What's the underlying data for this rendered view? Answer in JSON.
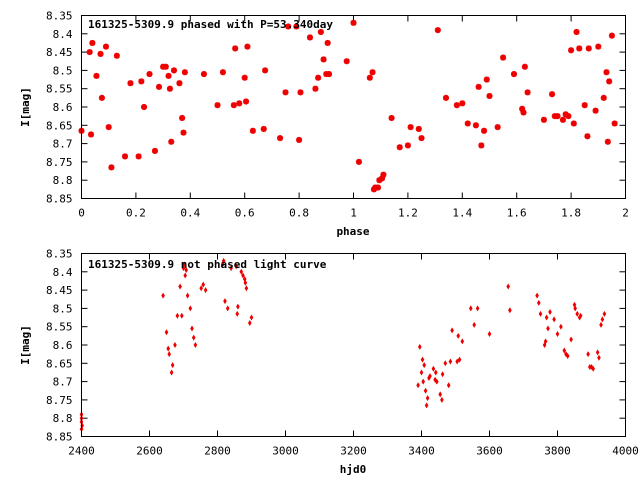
{
  "colors": {
    "series": "#ee0000",
    "axis": "#000000",
    "background": "#ffffff"
  },
  "chart_data": [
    {
      "type": "scatter",
      "title": "161325-5309.9 phased with P=53.340day",
      "xlabel": "phase",
      "ylabel": "I[mag]",
      "xlim": [
        0,
        2
      ],
      "ylim": [
        8.85,
        8.35
      ],
      "y_inverted": true,
      "grid": false,
      "marker": "star",
      "x_ticks": [
        "0",
        "0.2",
        "0.4",
        "0.6",
        "0.8",
        "1",
        "1.2",
        "1.4",
        "1.6",
        "1.8",
        "2"
      ],
      "x_tick_values": [
        0,
        0.2,
        0.4,
        0.6,
        0.8,
        1.0,
        1.2,
        1.4,
        1.6,
        1.8,
        2.0
      ],
      "y_ticks": [
        "8.35",
        "8.4",
        "8.45",
        "8.5",
        "8.55",
        "8.6",
        "8.65",
        "8.7",
        "8.75",
        "8.8",
        "8.85"
      ],
      "y_tick_values": [
        8.35,
        8.4,
        8.45,
        8.5,
        8.55,
        8.6,
        8.65,
        8.7,
        8.75,
        8.8,
        8.85
      ],
      "series": [
        {
          "points": [
            [
              0.0,
              8.665
            ],
            [
              0.03,
              8.45
            ],
            [
              0.035,
              8.675
            ],
            [
              0.04,
              8.425
            ],
            [
              0.055,
              8.515
            ],
            [
              0.07,
              8.455
            ],
            [
              0.075,
              8.575
            ],
            [
              0.09,
              8.435
            ],
            [
              0.1,
              8.655
            ],
            [
              0.11,
              8.765
            ],
            [
              0.13,
              8.46
            ],
            [
              0.16,
              8.735
            ],
            [
              0.18,
              8.535
            ],
            [
              0.21,
              8.735
            ],
            [
              0.22,
              8.53
            ],
            [
              0.23,
              8.6
            ],
            [
              0.25,
              8.51
            ],
            [
              0.27,
              8.72
            ],
            [
              0.285,
              8.545
            ],
            [
              0.3,
              8.49
            ],
            [
              0.31,
              8.49
            ],
            [
              0.32,
              8.515
            ],
            [
              0.325,
              8.55
            ],
            [
              0.33,
              8.695
            ],
            [
              0.34,
              8.5
            ],
            [
              0.36,
              8.535
            ],
            [
              0.37,
              8.63
            ],
            [
              0.375,
              8.67
            ],
            [
              0.38,
              8.505
            ],
            [
              0.45,
              8.51
            ],
            [
              0.5,
              8.595
            ],
            [
              0.52,
              8.505
            ],
            [
              0.56,
              8.595
            ],
            [
              0.565,
              8.44
            ],
            [
              0.58,
              8.59
            ],
            [
              0.6,
              8.52
            ],
            [
              0.605,
              8.585
            ],
            [
              0.61,
              8.435
            ],
            [
              0.63,
              8.665
            ],
            [
              0.67,
              8.66
            ],
            [
              0.675,
              8.5
            ],
            [
              0.73,
              8.685
            ],
            [
              0.75,
              8.56
            ],
            [
              0.76,
              8.38
            ],
            [
              0.79,
              8.38
            ],
            [
              0.8,
              8.69
            ],
            [
              0.805,
              8.56
            ],
            [
              0.84,
              8.41
            ],
            [
              0.86,
              8.55
            ],
            [
              0.87,
              8.52
            ],
            [
              0.88,
              8.395
            ],
            [
              0.89,
              8.47
            ],
            [
              0.9,
              8.51
            ],
            [
              0.905,
              8.425
            ],
            [
              0.91,
              8.51
            ],
            [
              0.975,
              8.475
            ],
            [
              1.0,
              8.37
            ],
            [
              1.02,
              8.75
            ],
            [
              1.06,
              8.52
            ],
            [
              1.07,
              8.505
            ],
            [
              1.075,
              8.825
            ],
            [
              1.08,
              8.82
            ],
            [
              1.09,
              8.82
            ],
            [
              1.095,
              8.8
            ],
            [
              1.105,
              8.795
            ],
            [
              1.11,
              8.785
            ],
            [
              1.14,
              8.63
            ],
            [
              1.17,
              8.71
            ],
            [
              1.2,
              8.705
            ],
            [
              1.21,
              8.655
            ],
            [
              1.24,
              8.66
            ],
            [
              1.25,
              8.685
            ],
            [
              1.31,
              8.39
            ],
            [
              1.34,
              8.575
            ],
            [
              1.38,
              8.595
            ],
            [
              1.4,
              8.59
            ],
            [
              1.42,
              8.645
            ],
            [
              1.45,
              8.65
            ],
            [
              1.46,
              8.545
            ],
            [
              1.47,
              8.705
            ],
            [
              1.48,
              8.665
            ],
            [
              1.49,
              8.525
            ],
            [
              1.5,
              8.57
            ],
            [
              1.53,
              8.655
            ],
            [
              1.55,
              8.465
            ],
            [
              1.59,
              8.51
            ],
            [
              1.62,
              8.605
            ],
            [
              1.625,
              8.615
            ],
            [
              1.63,
              8.49
            ],
            [
              1.64,
              8.56
            ],
            [
              1.7,
              8.635
            ],
            [
              1.73,
              8.565
            ],
            [
              1.74,
              8.625
            ],
            [
              1.75,
              8.625
            ],
            [
              1.77,
              8.635
            ],
            [
              1.78,
              8.62
            ],
            [
              1.79,
              8.625
            ],
            [
              1.8,
              8.445
            ],
            [
              1.81,
              8.645
            ],
            [
              1.82,
              8.395
            ],
            [
              1.83,
              8.44
            ],
            [
              1.85,
              8.595
            ],
            [
              1.86,
              8.68
            ],
            [
              1.865,
              8.44
            ],
            [
              1.89,
              8.61
            ],
            [
              1.9,
              8.435
            ],
            [
              1.92,
              8.575
            ],
            [
              1.93,
              8.505
            ],
            [
              1.935,
              8.695
            ],
            [
              1.94,
              8.53
            ],
            [
              1.95,
              8.405
            ],
            [
              1.96,
              8.645
            ]
          ]
        }
      ]
    },
    {
      "type": "scatter",
      "title": "161325-5309.9 not phased light curve",
      "xlabel": "hjd0",
      "ylabel": "I[mag]",
      "xlim": [
        2400,
        4000
      ],
      "ylim": [
        8.85,
        8.35
      ],
      "y_inverted": true,
      "grid": false,
      "marker": "diamond",
      "x_ticks": [
        "2400",
        "2600",
        "2800",
        "3000",
        "3200",
        "3400",
        "3600",
        "3800",
        "4000"
      ],
      "x_tick_values": [
        2400,
        2600,
        2800,
        3000,
        3200,
        3400,
        3600,
        3800,
        4000
      ],
      "y_ticks": [
        "8.35",
        "8.4",
        "8.45",
        "8.5",
        "8.55",
        "8.6",
        "8.65",
        "8.7",
        "8.75",
        "8.8",
        "8.85"
      ],
      "y_tick_values": [
        8.35,
        8.4,
        8.45,
        8.5,
        8.55,
        8.6,
        8.65,
        8.7,
        8.75,
        8.8,
        8.85
      ],
      "series": [
        {
          "points": [
            [
              2400,
              8.79
            ],
            [
              2400,
              8.8
            ],
            [
              2400,
              8.81
            ],
            [
              2400,
              8.83
            ],
            [
              2402,
              8.82
            ],
            [
              2640,
              8.465
            ],
            [
              2650,
              8.565
            ],
            [
              2655,
              8.61
            ],
            [
              2658,
              8.625
            ],
            [
              2665,
              8.675
            ],
            [
              2668,
              8.655
            ],
            [
              2675,
              8.6
            ],
            [
              2682,
              8.52
            ],
            [
              2690,
              8.44
            ],
            [
              2695,
              8.52
            ],
            [
              2700,
              8.39
            ],
            [
              2702,
              8.38
            ],
            [
              2705,
              8.41
            ],
            [
              2708,
              8.395
            ],
            [
              2712,
              8.465
            ],
            [
              2720,
              8.5
            ],
            [
              2725,
              8.555
            ],
            [
              2730,
              8.58
            ],
            [
              2735,
              8.6
            ],
            [
              2752,
              8.445
            ],
            [
              2758,
              8.435
            ],
            [
              2765,
              8.45
            ],
            [
              2815,
              8.38
            ],
            [
              2818,
              8.37
            ],
            [
              2822,
              8.48
            ],
            [
              2830,
              8.5
            ],
            [
              2840,
              8.39
            ],
            [
              2855,
              8.385
            ],
            [
              2858,
              8.515
            ],
            [
              2860,
              8.495
            ],
            [
              2870,
              8.4
            ],
            [
              2875,
              8.41
            ],
            [
              2880,
              8.42
            ],
            [
              2882,
              8.43
            ],
            [
              2885,
              8.445
            ],
            [
              2895,
              8.54
            ],
            [
              2900,
              8.525
            ],
            [
              3390,
              8.71
            ],
            [
              3395,
              8.605
            ],
            [
              3400,
              8.675
            ],
            [
              3403,
              8.64
            ],
            [
              3405,
              8.7
            ],
            [
              3408,
              8.655
            ],
            [
              3412,
              8.725
            ],
            [
              3415,
              8.765
            ],
            [
              3418,
              8.745
            ],
            [
              3422,
              8.69
            ],
            [
              3425,
              8.685
            ],
            [
              3435,
              8.665
            ],
            [
              3440,
              8.695
            ],
            [
              3442,
              8.675
            ],
            [
              3445,
              8.7
            ],
            [
              3455,
              8.735
            ],
            [
              3460,
              8.75
            ],
            [
              3462,
              8.68
            ],
            [
              3470,
              8.65
            ],
            [
              3480,
              8.71
            ],
            [
              3485,
              8.645
            ],
            [
              3490,
              8.56
            ],
            [
              3505,
              8.645
            ],
            [
              3508,
              8.575
            ],
            [
              3512,
              8.64
            ],
            [
              3520,
              8.59
            ],
            [
              3545,
              8.5
            ],
            [
              3555,
              8.545
            ],
            [
              3565,
              8.5
            ],
            [
              3600,
              8.57
            ],
            [
              3655,
              8.44
            ],
            [
              3660,
              8.505
            ],
            [
              3740,
              8.465
            ],
            [
              3745,
              8.485
            ],
            [
              3750,
              8.515
            ],
            [
              3762,
              8.6
            ],
            [
              3765,
              8.59
            ],
            [
              3768,
              8.525
            ],
            [
              3772,
              8.555
            ],
            [
              3778,
              8.51
            ],
            [
              3790,
              8.53
            ],
            [
              3800,
              8.57
            ],
            [
              3810,
              8.55
            ],
            [
              3820,
              8.615
            ],
            [
              3825,
              8.625
            ],
            [
              3830,
              8.63
            ],
            [
              3840,
              8.585
            ],
            [
              3850,
              8.49
            ],
            [
              3852,
              8.5
            ],
            [
              3858,
              8.515
            ],
            [
              3865,
              8.525
            ],
            [
              3868,
              8.52
            ],
            [
              3890,
              8.625
            ],
            [
              3895,
              8.66
            ],
            [
              3900,
              8.66
            ],
            [
              3905,
              8.665
            ],
            [
              3918,
              8.62
            ],
            [
              3922,
              8.635
            ],
            [
              3928,
              8.545
            ],
            [
              3932,
              8.53
            ],
            [
              3938,
              8.515
            ]
          ]
        }
      ]
    }
  ]
}
